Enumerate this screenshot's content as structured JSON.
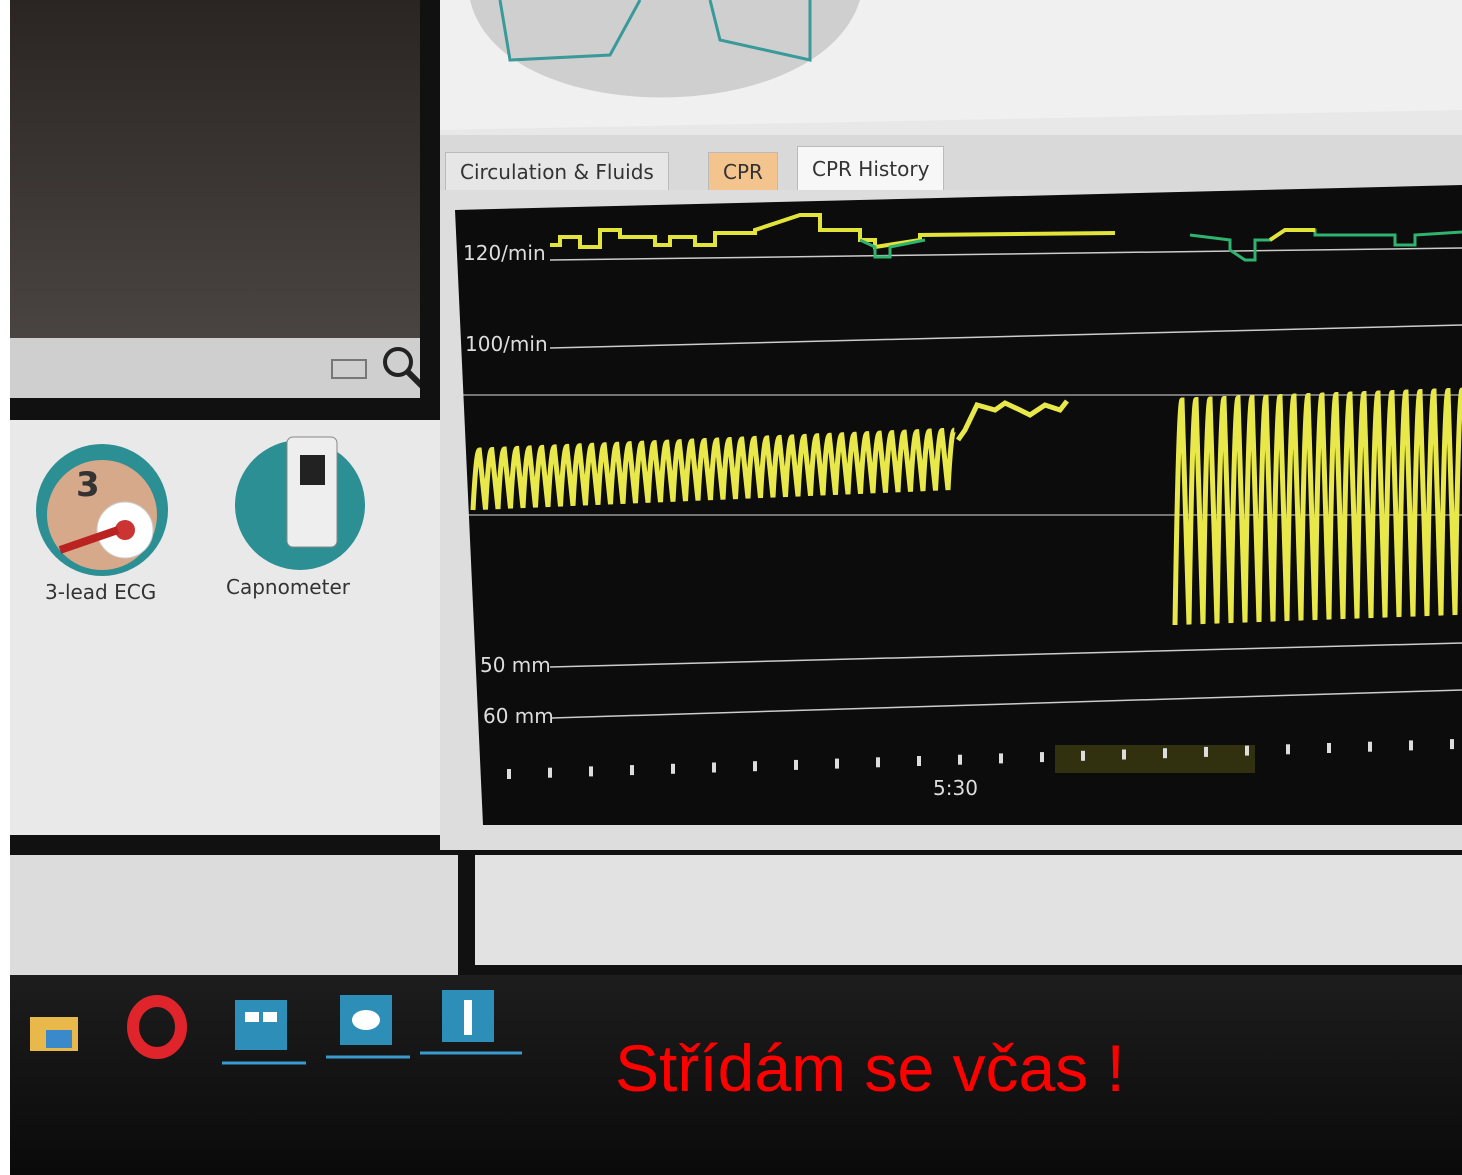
{
  "tabs": [
    "Circulation & Fluids",
    "CPR",
    "CPR History"
  ],
  "chart": {
    "rate_labels": [
      "120/min",
      "100/min"
    ],
    "depth_labels": [
      "50 mm",
      "60 mm"
    ],
    "time_label": "5:30"
  },
  "devices": [
    {
      "badge": "3",
      "label": "3-lead ECG"
    },
    {
      "label": "Capnometer"
    }
  ],
  "caption": "Střídám se včas !"
}
